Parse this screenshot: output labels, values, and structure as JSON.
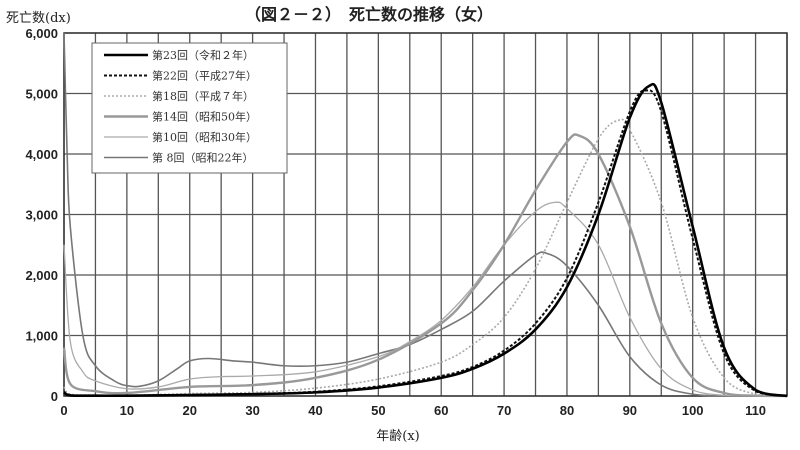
{
  "chart_data": {
    "type": "line",
    "title": "（図２－２）　死亡数の推移（女）",
    "ylabel": "死亡数(dx)",
    "xlabel": "年齢(x)",
    "xlim": [
      0,
      115
    ],
    "ylim": [
      0,
      6000
    ],
    "xticks": [
      0,
      10,
      20,
      30,
      40,
      50,
      60,
      70,
      80,
      90,
      100,
      110
    ],
    "xtick_labels": [
      "0",
      "10",
      "20",
      "30",
      "40",
      "50",
      "60",
      "70",
      "80",
      "90",
      "100",
      "110"
    ],
    "yticks": [
      0,
      1000,
      2000,
      3000,
      4000,
      5000,
      6000
    ],
    "ytick_labels": [
      "0",
      "1,000",
      "2,000",
      "3,000",
      "4,000",
      "5,000",
      "6,000"
    ],
    "grid": true,
    "legend_position": "top-left",
    "series": [
      {
        "name": "第23回（令和２年）",
        "color": "#000000",
        "style": "solid-thick",
        "points": [
          [
            0,
            60
          ],
          [
            1,
            10
          ],
          [
            5,
            5
          ],
          [
            10,
            5
          ],
          [
            20,
            15
          ],
          [
            30,
            30
          ],
          [
            40,
            60
          ],
          [
            50,
            140
          ],
          [
            60,
            300
          ],
          [
            65,
            450
          ],
          [
            70,
            700
          ],
          [
            75,
            1100
          ],
          [
            80,
            1800
          ],
          [
            85,
            3000
          ],
          [
            90,
            4600
          ],
          [
            93,
            5120
          ],
          [
            95,
            4850
          ],
          [
            100,
            2800
          ],
          [
            105,
            800
          ],
          [
            110,
            100
          ],
          [
            115,
            0
          ]
        ]
      },
      {
        "name": "第22回（平成27年）",
        "color": "#111111",
        "style": "dashed",
        "points": [
          [
            0,
            70
          ],
          [
            1,
            15
          ],
          [
            5,
            5
          ],
          [
            10,
            5
          ],
          [
            20,
            20
          ],
          [
            30,
            35
          ],
          [
            40,
            70
          ],
          [
            50,
            160
          ],
          [
            60,
            330
          ],
          [
            65,
            480
          ],
          [
            70,
            750
          ],
          [
            75,
            1200
          ],
          [
            80,
            1950
          ],
          [
            85,
            3200
          ],
          [
            90,
            4700
          ],
          [
            92.5,
            5050
          ],
          [
            95,
            4700
          ],
          [
            100,
            2600
          ],
          [
            105,
            700
          ],
          [
            110,
            80
          ],
          [
            115,
            0
          ]
        ]
      },
      {
        "name": "第18回（平成７年）",
        "color": "#aaaaaa",
        "style": "dotted",
        "points": [
          [
            0,
            150
          ],
          [
            1,
            30
          ],
          [
            5,
            15
          ],
          [
            10,
            10
          ],
          [
            20,
            40
          ],
          [
            30,
            60
          ],
          [
            40,
            130
          ],
          [
            50,
            280
          ],
          [
            60,
            560
          ],
          [
            65,
            850
          ],
          [
            70,
            1300
          ],
          [
            75,
            2100
          ],
          [
            80,
            3200
          ],
          [
            85,
            4250
          ],
          [
            88,
            4550
          ],
          [
            90,
            4400
          ],
          [
            95,
            3200
          ],
          [
            100,
            1300
          ],
          [
            105,
            300
          ],
          [
            110,
            30
          ],
          [
            115,
            0
          ]
        ]
      },
      {
        "name": "第14回（昭和50年）",
        "color": "#999999",
        "style": "solid-wide",
        "points": [
          [
            0,
            800
          ],
          [
            1,
            200
          ],
          [
            5,
            80
          ],
          [
            10,
            50
          ],
          [
            20,
            150
          ],
          [
            30,
            180
          ],
          [
            40,
            300
          ],
          [
            50,
            600
          ],
          [
            60,
            1200
          ],
          [
            65,
            1750
          ],
          [
            70,
            2500
          ],
          [
            75,
            3400
          ],
          [
            80,
            4200
          ],
          [
            82,
            4300
          ],
          [
            85,
            4000
          ],
          [
            90,
            2800
          ],
          [
            95,
            1200
          ],
          [
            100,
            300
          ],
          [
            105,
            50
          ],
          [
            110,
            5
          ],
          [
            115,
            0
          ]
        ]
      },
      {
        "name": "第10回（昭和30年）",
        "color": "#aaaaaa",
        "style": "solid-thin",
        "points": [
          [
            0,
            2500
          ],
          [
            1,
            900
          ],
          [
            3,
            400
          ],
          [
            5,
            250
          ],
          [
            10,
            120
          ],
          [
            15,
            150
          ],
          [
            20,
            280
          ],
          [
            25,
            320
          ],
          [
            30,
            330
          ],
          [
            40,
            400
          ],
          [
            50,
            650
          ],
          [
            55,
            900
          ],
          [
            60,
            1250
          ],
          [
            65,
            1800
          ],
          [
            70,
            2500
          ],
          [
            75,
            3050
          ],
          [
            78,
            3200
          ],
          [
            80,
            3100
          ],
          [
            85,
            2500
          ],
          [
            90,
            1300
          ],
          [
            95,
            450
          ],
          [
            100,
            100
          ],
          [
            105,
            10
          ],
          [
            110,
            0
          ],
          [
            115,
            0
          ]
        ]
      },
      {
        "name": "第 8回（昭和22年）",
        "color": "#777777",
        "style": "solid",
        "points": [
          [
            0,
            6100
          ],
          [
            0.5,
            4000
          ],
          [
            1,
            2800
          ],
          [
            3,
            1000
          ],
          [
            5,
            500
          ],
          [
            8,
            250
          ],
          [
            10,
            170
          ],
          [
            12,
            160
          ],
          [
            15,
            250
          ],
          [
            18,
            450
          ],
          [
            20,
            580
          ],
          [
            23,
            620
          ],
          [
            27,
            580
          ],
          [
            30,
            560
          ],
          [
            35,
            500
          ],
          [
            40,
            500
          ],
          [
            45,
            560
          ],
          [
            50,
            700
          ],
          [
            55,
            850
          ],
          [
            60,
            1100
          ],
          [
            65,
            1400
          ],
          [
            70,
            1900
          ],
          [
            75,
            2330
          ],
          [
            77,
            2350
          ],
          [
            80,
            2150
          ],
          [
            85,
            1500
          ],
          [
            90,
            650
          ],
          [
            95,
            180
          ],
          [
            100,
            30
          ],
          [
            105,
            0
          ],
          [
            110,
            0
          ],
          [
            115,
            0
          ]
        ]
      }
    ]
  }
}
